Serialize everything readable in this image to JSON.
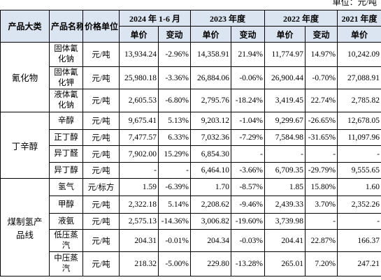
{
  "unit": "单位：元/吨",
  "header": {
    "top": [
      "产品大类",
      "产品名称",
      "价格单位",
      "2024 年 1-6 月",
      "2023 年度",
      "2022 年度",
      "2021 年度"
    ],
    "sub": [
      "单价",
      "变动",
      "单价",
      "变动",
      "单价",
      "变动",
      "单价"
    ]
  },
  "groups": [
    {
      "name": "氰化物",
      "rows": [
        [
          "固体氰化钠",
          "元/吨",
          "13,934.24",
          "-2.96%",
          "14,358.91",
          "21.94%",
          "11,774.97",
          "14.97%",
          "10,242.09"
        ],
        [
          "固体氰化钾",
          "元/吨",
          "25,980.18",
          "-3.36%",
          "26,884.06",
          "-0.06%",
          "26,900.44",
          "-0.70%",
          "27,088.91"
        ],
        [
          "液体氰化钠",
          "元/吨",
          "2,605.53",
          "-6.80%",
          "2,795.76",
          "-18.24%",
          "3,419.45",
          "22.74%",
          "2,785.82"
        ]
      ]
    },
    {
      "name": "丁辛醇",
      "rows": [
        [
          "辛醇",
          "元/吨",
          "9,675.41",
          "5.13%",
          "9,203.12",
          "-1.04%",
          "9,299.67",
          "-26.65%",
          "12,678.05"
        ],
        [
          "正丁醇",
          "元/吨",
          "7,477.57",
          "6.33%",
          "7,032.36",
          "-7.29%",
          "7,584.98",
          "-31.65%",
          "11,097.96"
        ],
        [
          "异丁醛",
          "元/吨",
          "7,902.00",
          "15.29%",
          "6,854.30",
          "-",
          "-",
          "-",
          "-"
        ],
        [
          "异丁醇",
          "元/吨",
          "-",
          "-",
          "6,464.10",
          "-3.66%",
          "6,709.35",
          "-29.79%",
          "9,555.65"
        ]
      ]
    },
    {
      "name": "煤制氢产品线",
      "rows": [
        [
          "氢气",
          "元/标方",
          "1.59",
          "-6.39%",
          "1.70",
          "-8.57%",
          "1.85",
          "15.80%",
          "1.60"
        ],
        [
          "甲醇",
          "元/吨",
          "2,322.18",
          "5.14%",
          "2,208.62",
          "-9.46%",
          "2,439.33",
          "3.70%",
          "2,352.26"
        ],
        [
          "液氨",
          "元/吨",
          "2,575.13",
          "-14.36%",
          "3,006.82",
          "-19.60%",
          "3,739.98",
          "-",
          "-"
        ],
        [
          "低压蒸汽",
          "元/吨",
          "204.31",
          "-0.01%",
          "204.34",
          "-0.03%",
          "204.41",
          "22.87%",
          "166.37"
        ],
        [
          "中压蒸汽",
          "元/吨",
          "218.32",
          "-5.00%",
          "229.80",
          "-13.28%",
          "265.01",
          "7.20%",
          "247.21"
        ]
      ]
    }
  ]
}
